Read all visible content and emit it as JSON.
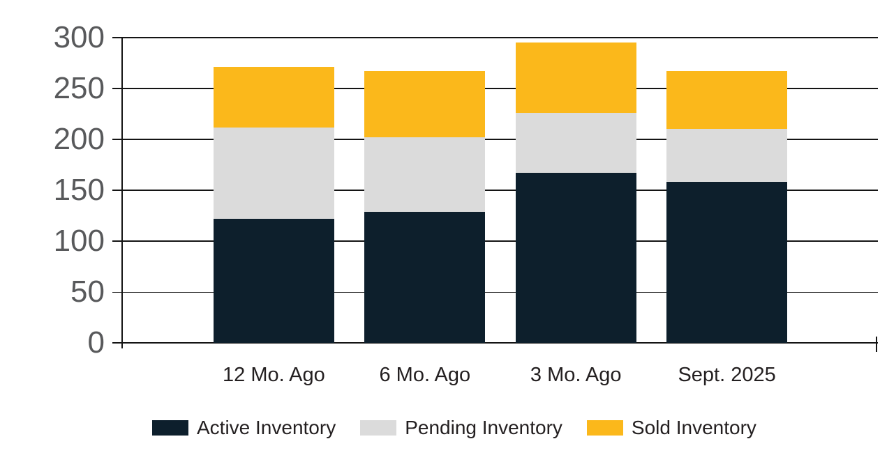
{
  "chart_data": {
    "type": "bar",
    "stacked": true,
    "title": "",
    "categories": [
      "12 Mo. Ago",
      "6 Mo. Ago",
      "3 Mo. Ago",
      "Sept. 2025"
    ],
    "series": [
      {
        "name": "Active Inventory",
        "color": "#0D1F2C",
        "values": [
          122,
          129,
          167,
          158
        ]
      },
      {
        "name": "Pending Inventory",
        "color": "#DBDBDB",
        "values": [
          90,
          73,
          59,
          52
        ]
      },
      {
        "name": "Sold Inventory",
        "color": "#FBB81B",
        "values": [
          59,
          65,
          69,
          57
        ]
      }
    ],
    "totals": [
      271,
      267,
      295,
      267
    ],
    "xlabel": "",
    "ylabel": "",
    "ylim": [
      0,
      300
    ],
    "yticks": [
      0,
      50,
      100,
      150,
      200,
      250,
      300
    ],
    "ytick_labels": [
      "0",
      "50",
      "100",
      "150",
      "200",
      "250",
      "300"
    ],
    "grid": true,
    "legend_position": "bottom",
    "colors": {
      "y_axis_label": "#58595B",
      "x_axis_label": "#231F20",
      "gridline": "#141414",
      "background": "#FFFFFF"
    }
  }
}
